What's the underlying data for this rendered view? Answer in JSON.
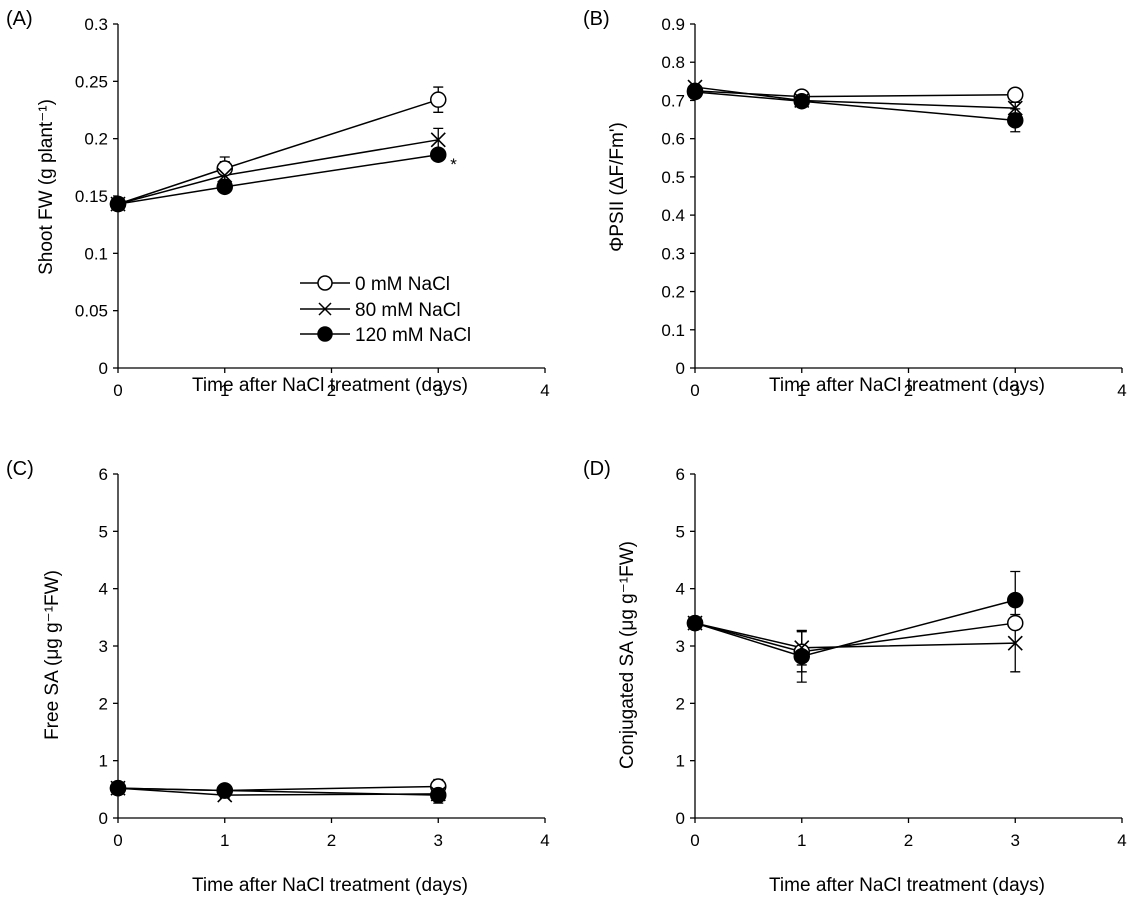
{
  "chart_data": [
    {
      "type": "line",
      "panel_label": "(A)",
      "xlabel": "Time after NaCl treatment (days)",
      "ylabel": "Shoot FW (g plant⁻¹)",
      "x_ticks": [
        "0",
        "1",
        "2",
        "3",
        "4"
      ],
      "y_ticks": [
        "0",
        "0.05",
        "0.1",
        "0.15",
        "0.2",
        "0.25",
        "0.3"
      ],
      "xlim": [
        0,
        4
      ],
      "ylim": [
        0,
        0.3
      ],
      "legend": "center-right",
      "x": [
        0,
        1,
        3
      ],
      "series": [
        {
          "name": "0 mM NaCl",
          "marker": "open-circle",
          "values": [
            0.143,
            0.174,
            0.234
          ],
          "errors": [
            0.003,
            0.01,
            0.011
          ]
        },
        {
          "name": "80 mM NaCl",
          "marker": "cross",
          "values": [
            0.143,
            0.168,
            0.199
          ],
          "errors": [
            0.003,
            0.012,
            0.01
          ]
        },
        {
          "name": "120 mM NaCl",
          "marker": "filled-circle",
          "values": [
            0.143,
            0.158,
            0.186
          ],
          "errors": [
            0.003,
            0.004,
            0.005
          ]
        }
      ],
      "annotations": [
        {
          "text": "*",
          "x": 3,
          "y": 0.183
        }
      ]
    },
    {
      "type": "line",
      "panel_label": "(B)",
      "xlabel": "Time after NaCl treatment (days)",
      "ylabel": "ΦPSII (ΔF/Fm')",
      "x_ticks": [
        "0",
        "1",
        "2",
        "3",
        "4"
      ],
      "y_ticks": [
        "0",
        "0.1",
        "0.2",
        "0.3",
        "0.4",
        "0.5",
        "0.6",
        "0.7",
        "0.8",
        "0.9"
      ],
      "xlim": [
        0,
        4
      ],
      "ylim": [
        0,
        0.9
      ],
      "x": [
        0,
        1,
        3
      ],
      "series": [
        {
          "marker": "open-circle",
          "values": [
            0.725,
            0.71,
            0.715
          ],
          "errors": [
            0.006,
            0.006,
            0.006
          ]
        },
        {
          "marker": "cross",
          "values": [
            0.735,
            0.7,
            0.68
          ],
          "errors": [
            0.006,
            0.006,
            0.015
          ]
        },
        {
          "marker": "filled-circle",
          "values": [
            0.722,
            0.698,
            0.648
          ],
          "errors": [
            0.006,
            0.006,
            0.03
          ]
        }
      ]
    },
    {
      "type": "line",
      "panel_label": "(C)",
      "xlabel": "Time after NaCl treatment (days)",
      "ylabel": "Free SA (μg g⁻¹FW)",
      "x_ticks": [
        "0",
        "1",
        "2",
        "3",
        "4"
      ],
      "y_ticks": [
        "0",
        "1",
        "2",
        "3",
        "4",
        "5",
        "6"
      ],
      "xlim": [
        0,
        4
      ],
      "ylim": [
        0,
        6
      ],
      "x": [
        0,
        1,
        3
      ],
      "series": [
        {
          "marker": "open-circle",
          "values": [
            0.52,
            0.48,
            0.55
          ],
          "errors": [
            0.05,
            0.05,
            0.12
          ]
        },
        {
          "marker": "cross",
          "values": [
            0.52,
            0.4,
            0.42
          ],
          "errors": [
            0.05,
            0.05,
            0.1
          ]
        },
        {
          "marker": "filled-circle",
          "values": [
            0.52,
            0.48,
            0.4
          ],
          "errors": [
            0.05,
            0.05,
            0.14
          ]
        }
      ]
    },
    {
      "type": "line",
      "panel_label": "(D)",
      "xlabel": "Time after NaCl treatment (days)",
      "ylabel": "Conjugated SA (μg g⁻¹FW)",
      "x_ticks": [
        "0",
        "1",
        "2",
        "3",
        "4"
      ],
      "y_ticks": [
        "0",
        "1",
        "2",
        "3",
        "4",
        "5",
        "6"
      ],
      "xlim": [
        0,
        4
      ],
      "ylim": [
        0,
        6
      ],
      "x": [
        0,
        1,
        3
      ],
      "series": [
        {
          "marker": "open-circle",
          "values": [
            3.4,
            2.9,
            3.4
          ],
          "errors": [
            0.05,
            0.35,
            0.1
          ]
        },
        {
          "marker": "cross",
          "values": [
            3.4,
            2.97,
            3.05
          ],
          "errors": [
            0.05,
            0.3,
            0.5
          ]
        },
        {
          "marker": "filled-circle",
          "values": [
            3.4,
            2.82,
            3.8
          ],
          "errors": [
            0.05,
            0.45,
            0.5
          ]
        }
      ]
    }
  ]
}
